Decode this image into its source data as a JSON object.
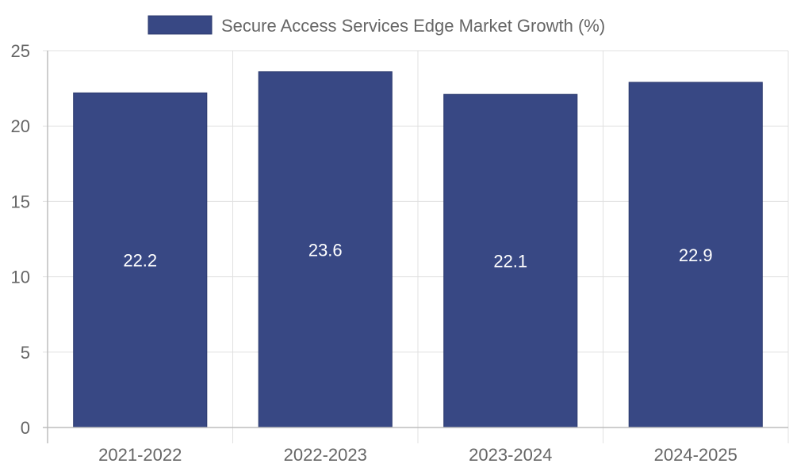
{
  "chart_data": {
    "type": "bar",
    "title": "",
    "xlabel": "",
    "ylabel": "",
    "categories": [
      "2021-2022",
      "2022-2023",
      "2023-2024",
      "2024-2025"
    ],
    "series": [
      {
        "name": "Secure Access Services Edge Market Growth (%)",
        "values": [
          22.2,
          23.6,
          22.1,
          22.9
        ],
        "data_labels": [
          "22.2",
          "23.6",
          "22.1",
          "22.9"
        ]
      }
    ],
    "ylim": [
      0,
      25
    ],
    "yticks": [
      0,
      5,
      10,
      15,
      20,
      25
    ],
    "ytick_labels": [
      "0",
      "5",
      "10",
      "15",
      "20",
      "25"
    ],
    "grid": true,
    "legend_position": "top-center",
    "colors": {
      "bar": "#384884",
      "bar_border": "#2c3a6e",
      "grid": "#e0e0e0",
      "axis": "#bdbdbd",
      "text": "#666666",
      "data_label": "#ffffff"
    }
  }
}
